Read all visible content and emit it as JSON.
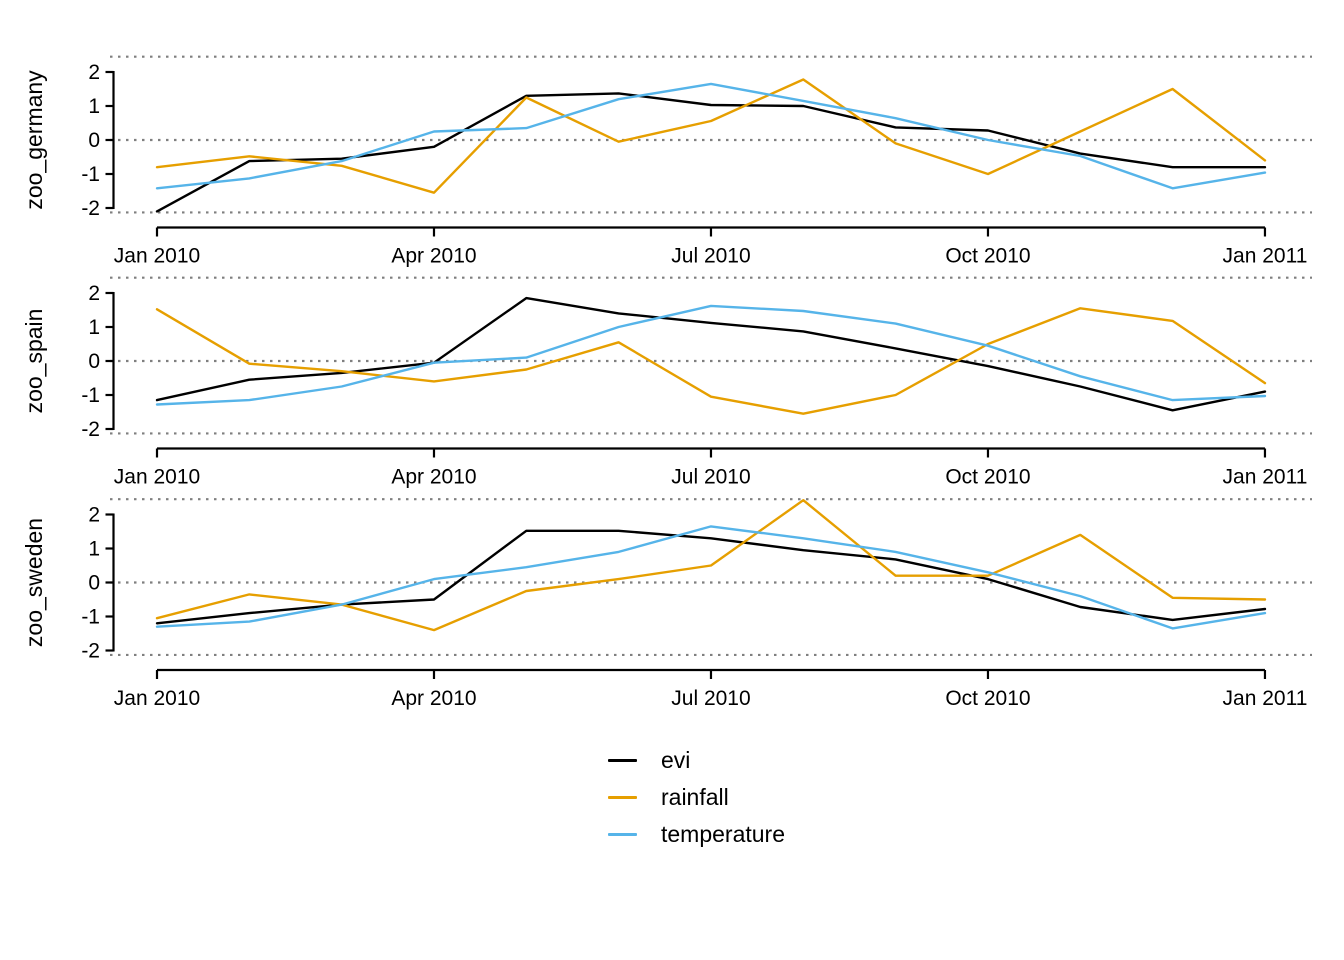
{
  "figure": {
    "background": "#ffffff",
    "grid_color": "#7f7f7f",
    "axis_color": "#000000"
  },
  "legend": {
    "items": [
      {
        "label": "evi",
        "color": "#000000"
      },
      {
        "label": "rainfall",
        "color": "#E69F00"
      },
      {
        "label": "temperature",
        "color": "#56B4E9"
      }
    ]
  },
  "chart_data": [
    {
      "type": "line",
      "title": "zoo_germany",
      "ylabel": "zoo_germany",
      "x": [
        "Jan 2010",
        "Feb 2010",
        "Mar 2010",
        "Apr 2010",
        "May 2010",
        "Jun 2010",
        "Jul 2010",
        "Aug 2010",
        "Sep 2010",
        "Oct 2010",
        "Nov 2010",
        "Dec 2010",
        "Jan 2011"
      ],
      "x_tick_labels": [
        "Jan 2010",
        "Apr 2010",
        "Jul 2010",
        "Oct 2010",
        "Jan 2011"
      ],
      "x_tick_indices": [
        0,
        3,
        6,
        9,
        12
      ],
      "yticks": [
        2,
        1,
        0,
        -1,
        -2
      ],
      "ylim": [
        -2.15,
        2.45
      ],
      "gridlines_y": [
        2.45,
        0,
        -2.13
      ],
      "grid_style": "dotted",
      "legend_position": "bottom",
      "series": [
        {
          "name": "evi",
          "color": "#000000",
          "values": [
            -2.1,
            -0.62,
            -0.55,
            -0.2,
            1.3,
            1.37,
            1.03,
            1.0,
            0.37,
            0.28,
            -0.4,
            -0.8,
            -0.8
          ]
        },
        {
          "name": "rainfall",
          "color": "#E69F00",
          "values": [
            -0.8,
            -0.48,
            -0.76,
            -1.55,
            1.25,
            -0.05,
            0.56,
            1.78,
            -0.1,
            -1.0,
            0.25,
            1.5,
            -0.6
          ]
        },
        {
          "name": "temperature",
          "color": "#56B4E9",
          "values": [
            -1.42,
            -1.13,
            -0.62,
            0.25,
            0.35,
            1.2,
            1.65,
            1.15,
            0.64,
            0.0,
            -0.47,
            -1.42,
            -0.96
          ]
        }
      ]
    },
    {
      "type": "line",
      "title": "zoo_spain",
      "ylabel": "zoo_spain",
      "x": [
        "Jan 2010",
        "Feb 2010",
        "Mar 2010",
        "Apr 2010",
        "May 2010",
        "Jun 2010",
        "Jul 2010",
        "Aug 2010",
        "Sep 2010",
        "Oct 2010",
        "Nov 2010",
        "Dec 2010",
        "Jan 2011"
      ],
      "x_tick_labels": [
        "Jan 2010",
        "Apr 2010",
        "Jul 2010",
        "Oct 2010",
        "Jan 2011"
      ],
      "x_tick_indices": [
        0,
        3,
        6,
        9,
        12
      ],
      "yticks": [
        2,
        1,
        0,
        -1,
        -2
      ],
      "ylim": [
        -2.15,
        2.45
      ],
      "gridlines_y": [
        2.45,
        0,
        -2.13
      ],
      "grid_style": "dotted",
      "legend_position": "bottom",
      "series": [
        {
          "name": "evi",
          "color": "#000000",
          "values": [
            -1.15,
            -0.55,
            -0.35,
            -0.05,
            1.85,
            1.4,
            1.12,
            0.87,
            0.37,
            -0.15,
            -0.75,
            -1.45,
            -0.9
          ]
        },
        {
          "name": "rainfall",
          "color": "#E69F00",
          "values": [
            1.52,
            -0.08,
            -0.3,
            -0.6,
            -0.25,
            0.55,
            -1.05,
            -1.55,
            -1.0,
            0.5,
            1.55,
            1.18,
            -0.65
          ]
        },
        {
          "name": "temperature",
          "color": "#56B4E9",
          "values": [
            -1.28,
            -1.15,
            -0.75,
            -0.05,
            0.1,
            1.0,
            1.62,
            1.47,
            1.1,
            0.45,
            -0.45,
            -1.15,
            -1.03
          ]
        }
      ]
    },
    {
      "type": "line",
      "title": "zoo_sweden",
      "ylabel": "zoo_sweden",
      "x": [
        "Jan 2010",
        "Feb 2010",
        "Mar 2010",
        "Apr 2010",
        "May 2010",
        "Jun 2010",
        "Jul 2010",
        "Aug 2010",
        "Sep 2010",
        "Oct 2010",
        "Nov 2010",
        "Dec 2010",
        "Jan 2011"
      ],
      "x_tick_labels": [
        "Jan 2010",
        "Apr 2010",
        "Jul 2010",
        "Oct 2010",
        "Jan 2011"
      ],
      "x_tick_indices": [
        0,
        3,
        6,
        9,
        12
      ],
      "yticks": [
        2,
        1,
        0,
        -1,
        -2
      ],
      "ylim": [
        -2.15,
        2.45
      ],
      "gridlines_y": [
        2.45,
        0,
        -2.13
      ],
      "grid_style": "dotted",
      "legend_position": "bottom",
      "series": [
        {
          "name": "evi",
          "color": "#000000",
          "values": [
            -1.2,
            -0.9,
            -0.65,
            -0.5,
            1.52,
            1.52,
            1.3,
            0.95,
            0.68,
            0.1,
            -0.72,
            -1.1,
            -0.78
          ]
        },
        {
          "name": "rainfall",
          "color": "#E69F00",
          "values": [
            -1.05,
            -0.35,
            -0.65,
            -1.4,
            -0.25,
            0.1,
            0.5,
            2.42,
            0.2,
            0.2,
            1.4,
            -0.45,
            -0.5
          ]
        },
        {
          "name": "temperature",
          "color": "#56B4E9",
          "values": [
            -1.3,
            -1.15,
            -0.65,
            0.1,
            0.45,
            0.9,
            1.65,
            1.3,
            0.9,
            0.3,
            -0.4,
            -1.35,
            -0.9
          ]
        }
      ]
    }
  ]
}
